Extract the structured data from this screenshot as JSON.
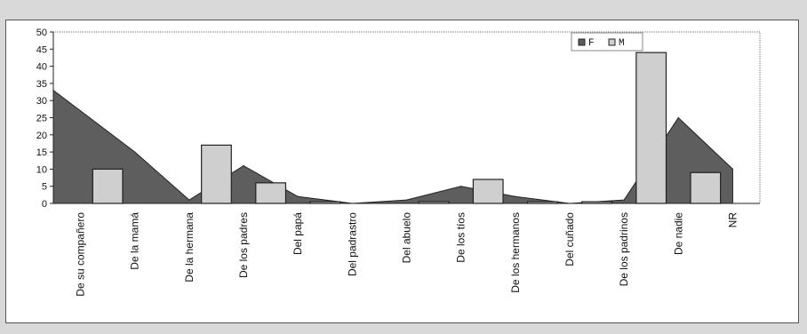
{
  "chart_data": {
    "type": "area",
    "title": "",
    "xlabel": "",
    "ylabel": "",
    "ylim": [
      0,
      50
    ],
    "yticks": [
      0,
      5,
      10,
      15,
      20,
      25,
      30,
      35,
      40,
      45,
      50
    ],
    "grid": false,
    "legend_position": "top-right",
    "categories": [
      "De su compañero",
      "De la mamá",
      "De la hermana",
      "De los padres",
      "Del papá",
      "Del padrastro",
      "Del abuelo",
      "De los tíos",
      "De los hermanos",
      "Del cuñado",
      "De los padrinos",
      "De nadie",
      "NR"
    ],
    "series": [
      {
        "name": "F",
        "render": "area",
        "color": "#5e5e5e",
        "values": [
          33,
          15,
          1,
          11,
          2,
          0,
          1,
          5,
          2,
          0,
          1,
          25,
          10
        ]
      },
      {
        "name": "M",
        "render": "bar",
        "color": "#cfcfcf",
        "values": [
          10,
          null,
          17,
          6,
          0.5,
          null,
          0.5,
          7,
          0.5,
          0.5,
          44,
          9,
          null
        ]
      }
    ]
  }
}
